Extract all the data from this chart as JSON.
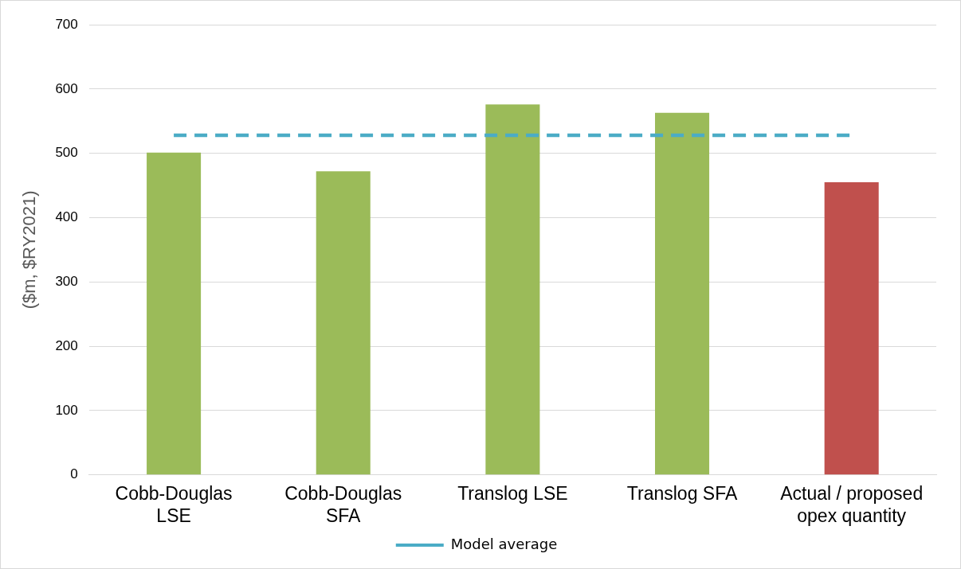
{
  "chart_data": {
    "type": "bar",
    "ylabel": "($m, $RY2021)",
    "categories": [
      "Cobb-Douglas\nLSE",
      "Cobb-Douglas\nSFA",
      "Translog LSE",
      "Translog SFA",
      "Actual / proposed\nopex quantity"
    ],
    "series": [
      {
        "colors": [
          "#9bbb59",
          "#9bbb59",
          "#9bbb59",
          "#9bbb59",
          "#c0504d"
        ],
        "values": [
          501,
          472,
          576,
          563,
          455
        ]
      },
      {
        "type": "line",
        "name": "Model average",
        "color": "#4bacc6",
        "line_style": "dashed",
        "marker": "none",
        "values": [
          528,
          528,
          528,
          528,
          528
        ]
      }
    ],
    "ylim": [
      0,
      700
    ],
    "yticks": [
      0,
      100,
      200,
      300,
      400,
      500,
      600,
      700
    ],
    "grid": "y",
    "legend": "bottom"
  }
}
